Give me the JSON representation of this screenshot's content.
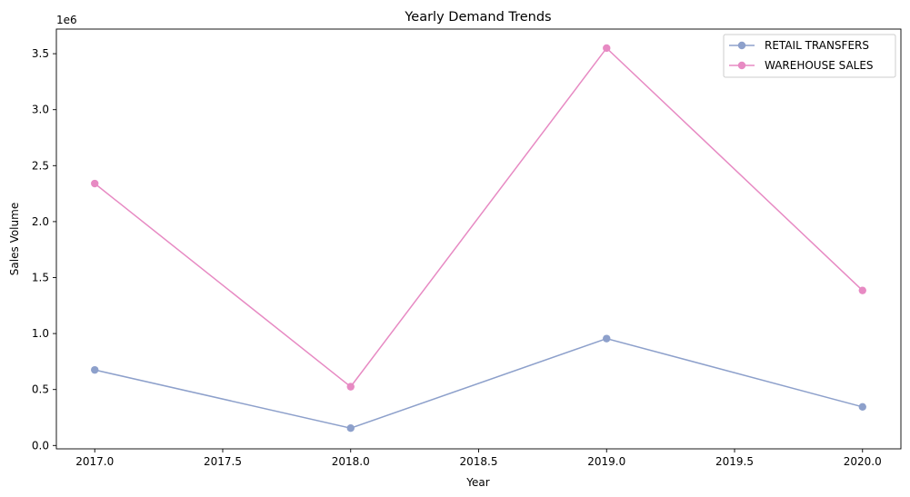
{
  "chart_data": {
    "type": "line",
    "title": "Yearly Demand Trends",
    "xlabel": "Year",
    "ylabel": "Sales Volume",
    "y_offset_text": "1e6",
    "x": [
      2017,
      2018,
      2019,
      2020
    ],
    "xlim": [
      2016.85,
      2020.15
    ],
    "ylim": [
      -0.03,
      3.72
    ],
    "y_scale_factor": 1000000,
    "x_ticks": [
      2017.0,
      2017.5,
      2018.0,
      2018.5,
      2019.0,
      2019.5,
      2020.0
    ],
    "x_tick_labels": [
      "2017.0",
      "2017.5",
      "2018.0",
      "2018.5",
      "2019.0",
      "2019.5",
      "2020.0"
    ],
    "y_ticks": [
      0.0,
      0.5,
      1.0,
      1.5,
      2.0,
      2.5,
      3.0,
      3.5
    ],
    "y_tick_labels": [
      "0.0",
      "0.5",
      "1.0",
      "1.5",
      "2.0",
      "2.5",
      "3.0",
      "3.5"
    ],
    "grid": false,
    "legend_position": "top-right",
    "series": [
      {
        "name": "RETAIL TRANSFERS",
        "color": "#8da0cb",
        "values": [
          0.675,
          0.155,
          0.955,
          0.345
        ]
      },
      {
        "name": "WAREHOUSE SALES",
        "color": "#e78ac3",
        "values": [
          2.34,
          0.525,
          3.55,
          1.385
        ]
      }
    ]
  }
}
